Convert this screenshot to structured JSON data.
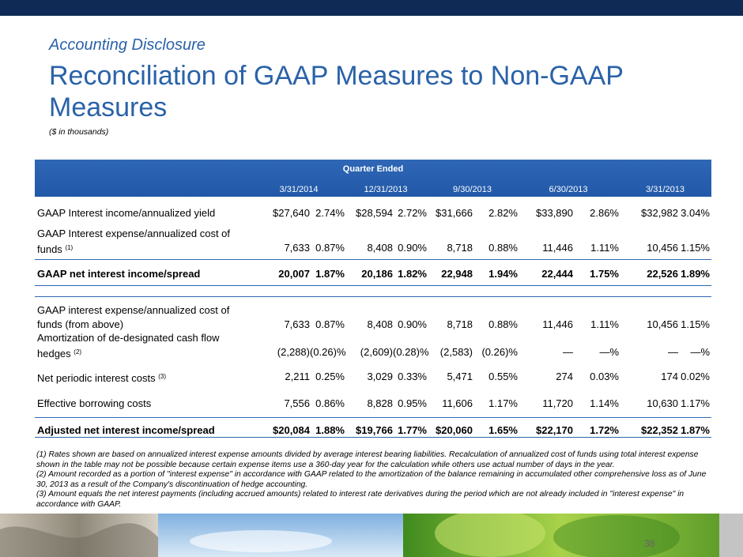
{
  "header": {
    "kicker": "Accounting Disclosure",
    "title": "Reconciliation of GAAP Measures to Non-GAAP Measures",
    "note": "($ in thousands)"
  },
  "table": {
    "group": "Quarter Ended",
    "periods": [
      "3/31/2014",
      "12/31/2013",
      "9/30/2013",
      "6/30/2013",
      "3/31/2013"
    ],
    "rows": [
      {
        "label": [
          "GAAP Interest income/annualized yield"
        ],
        "cells": [
          "$27,640",
          "2.74%",
          "$28,594",
          "2.72%",
          "$31,666",
          "2.82%",
          "$33,890",
          "2.86%",
          "$32,982",
          "3.04%"
        ]
      },
      {
        "label": [
          "GAAP Interest expense/annualized cost of",
          "funds"
        ],
        "note": "(1)",
        "cells": [
          "7,633",
          "0.87%",
          "8,408",
          "0.90%",
          "8,718",
          "0.88%",
          "11,446",
          "1.11%",
          "10,456",
          "1.15%"
        ]
      },
      {
        "label": [
          "GAAP net interest income/spread"
        ],
        "bold": true,
        "cells": [
          "20,007",
          "1.87%",
          "20,186",
          "1.82%",
          "22,948",
          "1.94%",
          "22,444",
          "1.75%",
          "22,526",
          "1.89%"
        ]
      },
      {
        "label": [
          "GAAP interest expense/annualized cost of",
          "funds (from above)"
        ],
        "cells": [
          "7,633",
          "0.87%",
          "8,408",
          "0.90%",
          "8,718",
          "0.88%",
          "11,446",
          "1.11%",
          "10,456",
          "1.15%"
        ]
      },
      {
        "label": [
          "Amortization of de-designated cash flow",
          "hedges"
        ],
        "note": "(2)",
        "cells": [
          "(2,288)",
          "(0.26)%",
          "(2,609)",
          "(0.28)%",
          "(2,583)",
          "(0.26)%",
          "—",
          "—%",
          "—",
          "—%"
        ]
      },
      {
        "label": [
          "Net periodic interest costs"
        ],
        "note": "(3)",
        "cells": [
          "2,211",
          "0.25%",
          "3,029",
          "0.33%",
          "5,471",
          "0.55%",
          "274",
          "0.03%",
          "174",
          "0.02%"
        ]
      },
      {
        "label": [
          "Effective borrowing costs"
        ],
        "cells": [
          "7,556",
          "0.86%",
          "8,828",
          "0.95%",
          "11,606",
          "1.17%",
          "11,720",
          "1.14%",
          "10,630",
          "1.17%"
        ]
      },
      {
        "label": [
          "Adjusted net interest income/spread"
        ],
        "bold": true,
        "cells": [
          "$20,084",
          "1.88%",
          "$19,766",
          "1.77%",
          "$20,060",
          "1.65%",
          "$22,170",
          "1.72%",
          "$22,352",
          "1.87%"
        ]
      }
    ]
  },
  "footnotes": [
    "(1) Rates shown are based on annualized interest expense amounts divided by average interest bearing liabilities.  Recalculation of annualized cost of funds using total interest expense shown in the table may not be possible because certain expense items use a 360-day year for the calculation while others use actual number of days in the year.",
    "(2)  Amount recorded as a portion of \"interest expense\" in accordance with GAAP related to the amortization of the balance remaining in accumulated other comprehensive loss as of June 30, 2013 as a result of the Company's discontinuation of hedge accounting.",
    "(3)  Amount equals the net interest payments (including accrued amounts) related to interest rate derivatives during the period which are not already included in \"interest expense\" in accordance with GAAP."
  ],
  "page_number": "38"
}
